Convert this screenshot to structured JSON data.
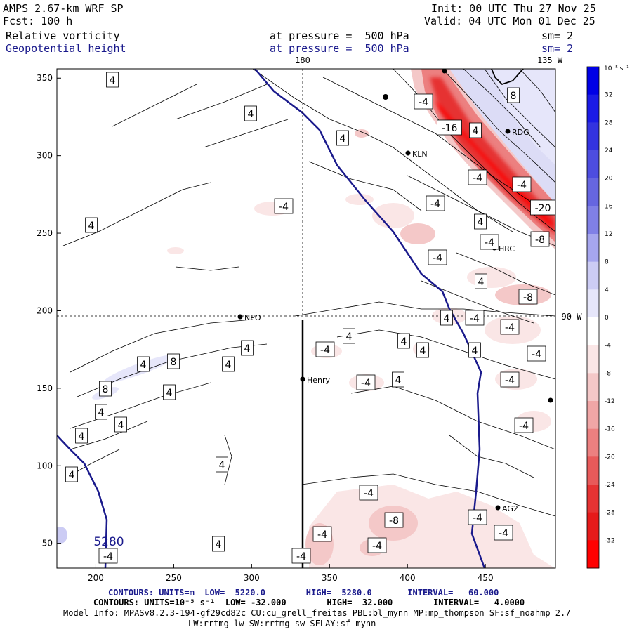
{
  "header": {
    "model": "AMPS 2.67-km WRF SP",
    "fcst": "Fcst: 100 h",
    "init": "Init: 00 UTC Thu 27 Nov 25",
    "valid": "Valid: 04 UTC Mon 01 Dec 25",
    "field1": "Relative vorticity",
    "field2": "Geopotential height",
    "pressure1": "at pressure =  500 hPa",
    "pressure2": "at pressure =  500 hPa",
    "sm1": "sm= 2",
    "sm2": "sm= 2"
  },
  "map_labels": {
    "lon_180": "180",
    "lon_135w": "135 W",
    "lon_90w": "90 W",
    "height_contour": "5280",
    "stations": [
      "RDG",
      "KLN",
      "HRC",
      "Henry",
      "AG2",
      "NPO"
    ]
  },
  "chart_data": {
    "type": "heatmap",
    "title": "Relative vorticity at 500 hPa with geopotential height contours",
    "x_ticks": [
      200,
      250,
      300,
      350,
      400,
      450
    ],
    "y_ticks": [
      50,
      100,
      150,
      200,
      250,
      300,
      350
    ],
    "xlim": [
      175,
      495
    ],
    "ylim": [
      34,
      356
    ],
    "colorbar": {
      "unit": "10⁻⁵ s⁻¹",
      "ticks": [
        32,
        28,
        24,
        20,
        16,
        12,
        8,
        4,
        0,
        -4,
        -8,
        -12,
        -16,
        -20,
        -24,
        -28,
        -32
      ],
      "colors": [
        "#0000e6",
        "#1a1ae6",
        "#3333e0",
        "#4d4de0",
        "#6666e0",
        "#8080e6",
        "#a6a6ee",
        "#ccccf4",
        "#e6e6fa",
        "#ffffff",
        "#fae6e6",
        "#f4c8c8",
        "#f0a6a6",
        "#ec8080",
        "#e85a5a",
        "#e63333",
        "#e61a1a",
        "#ff0000"
      ]
    },
    "contour_labels": [
      "4",
      "4",
      "4",
      "4",
      "4",
      "8",
      "-4",
      "-4",
      "-16",
      "4",
      "-4",
      "-4",
      "-4",
      "-20",
      "-8",
      "4",
      "-4",
      "-4",
      "-4",
      "4",
      "-8",
      "4",
      "-4",
      "4",
      "-4",
      "4",
      "-4",
      "4",
      "4",
      "4",
      "-4",
      "4",
      "-4",
      "-4",
      "4",
      "4",
      "8",
      "8",
      "4",
      "4",
      "4",
      "4",
      "4",
      "-4",
      "-4",
      "-8",
      "-4",
      "-4",
      "4",
      "-4",
      "-4",
      "-4"
    ],
    "geopotential_height": {
      "units": "m",
      "low": 5220.0,
      "high": 5280.0,
      "interval": 60.0,
      "labeled_contour": 5280
    }
  },
  "footer": {
    "line1_label": "CONTOURS:",
    "line1": "UNITS=m  LOW=  5220.0        HIGH=  5280.0       INTERVAL=   60.000",
    "line2_label": "CONTOURS:",
    "line2": "UNITS=10⁻⁵ s⁻¹  LOW= -32.000        HIGH=  32.000        INTERVAL=   4.0000",
    "model_info": "Model Info: MPASv8.2.3-194-gf29cd82c CU:cu_grell_freitas PBL:bl_mynn MP:mp_thompson SF:sf_noahmp 2.7",
    "model_info2": "LW:rrtmg_lw SW:rrtmg_sw SFLAY:sf_mynn"
  }
}
